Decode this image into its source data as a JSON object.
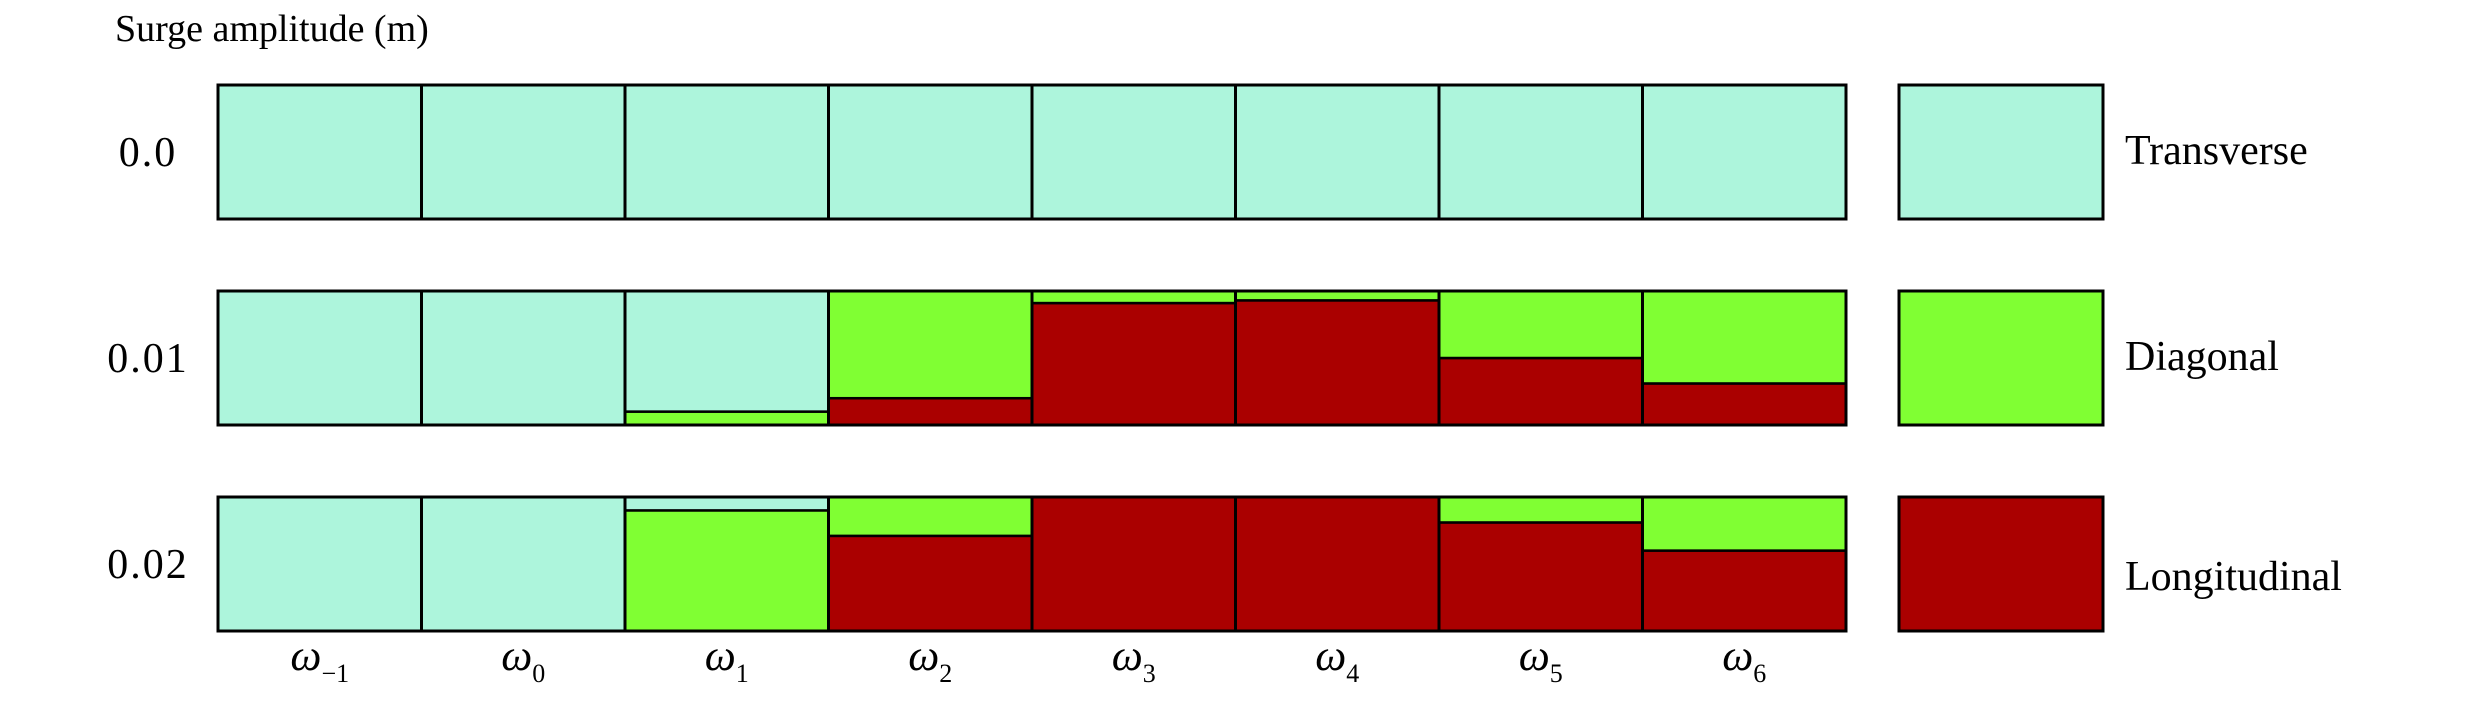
{
  "chart_data": {
    "type": "bar",
    "title": "Surge amplitude (m)",
    "categories": [
      "ω-1",
      "ω0",
      "ω1",
      "ω2",
      "ω3",
      "ω4",
      "ω5",
      "ω6"
    ],
    "category_symbol": "ω",
    "category_subscripts": [
      "−1",
      "0",
      "1",
      "2",
      "3",
      "4",
      "5",
      "6"
    ],
    "rows": [
      {
        "label": "0.0",
        "series": [
          {
            "name": "Transverse",
            "values": [
              1,
              1,
              1,
              1,
              1,
              1,
              1,
              1
            ]
          },
          {
            "name": "Diagonal",
            "values": [
              0,
              0,
              0,
              0,
              0,
              0,
              0,
              0
            ]
          },
          {
            "name": "Longitudinal",
            "values": [
              0,
              0,
              0,
              0,
              0,
              0,
              0,
              0
            ]
          }
        ]
      },
      {
        "label": "0.01",
        "series": [
          {
            "name": "Transverse",
            "values": [
              1,
              1,
              0.9,
              0,
              0,
              0,
              0,
              0
            ]
          },
          {
            "name": "Diagonal",
            "values": [
              0,
              0,
              0.1,
              0.8,
              0.09,
              0.07,
              0.5,
              0.69
            ]
          },
          {
            "name": "Longitudinal",
            "values": [
              0,
              0,
              0,
              0.2,
              0.91,
              0.93,
              0.5,
              0.31
            ]
          }
        ]
      },
      {
        "label": "0.02",
        "series": [
          {
            "name": "Transverse",
            "values": [
              1,
              1,
              0.1,
              0,
              0,
              0,
              0,
              0
            ]
          },
          {
            "name": "Diagonal",
            "values": [
              0,
              0,
              0.9,
              0.29,
              0,
              0,
              0.19,
              0.4
            ]
          },
          {
            "name": "Longitudinal",
            "values": [
              0,
              0,
              0,
              0.71,
              1,
              1,
              0.81,
              0.6
            ]
          }
        ]
      }
    ],
    "legend": [
      {
        "name": "Transverse",
        "color": "#adf5dc"
      },
      {
        "name": "Diagonal",
        "color": "#80ff33"
      },
      {
        "name": "Longitudinal",
        "color": "#aa0000"
      }
    ],
    "legend_position": "right",
    "ylim": [
      0,
      1
    ],
    "grid": false
  }
}
